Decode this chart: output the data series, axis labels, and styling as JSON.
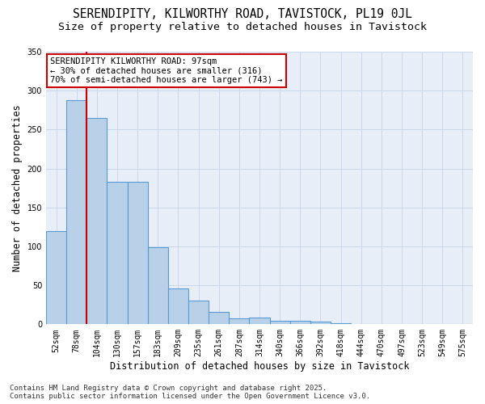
{
  "title": "SERENDIPITY, KILWORTHY ROAD, TAVISTOCK, PL19 0JL",
  "subtitle": "Size of property relative to detached houses in Tavistock",
  "xlabel": "Distribution of detached houses by size in Tavistock",
  "ylabel": "Number of detached properties",
  "categories": [
    "52sqm",
    "78sqm",
    "104sqm",
    "130sqm",
    "157sqm",
    "183sqm",
    "209sqm",
    "235sqm",
    "261sqm",
    "287sqm",
    "314sqm",
    "340sqm",
    "366sqm",
    "392sqm",
    "418sqm",
    "444sqm",
    "470sqm",
    "497sqm",
    "523sqm",
    "549sqm",
    "575sqm"
  ],
  "bar_heights": [
    120,
    288,
    265,
    183,
    183,
    99,
    46,
    30,
    16,
    8,
    9,
    5,
    4,
    3,
    1,
    0,
    0,
    0,
    0,
    0,
    0
  ],
  "bar_color": "#b8d0e8",
  "bar_edge_color": "#5b9bd5",
  "vline_pos": 1.5,
  "vline_color": "#cc0000",
  "annotation_text": "SERENDIPITY KILWORTHY ROAD: 97sqm\n← 30% of detached houses are smaller (316)\n70% of semi-detached houses are larger (743) →",
  "annotation_box_color": "#cc0000",
  "ylim": [
    0,
    350
  ],
  "yticks": [
    0,
    50,
    100,
    150,
    200,
    250,
    300,
    350
  ],
  "grid_color": "#ccd8ea",
  "background_color": "#e8eef8",
  "footer": "Contains HM Land Registry data © Crown copyright and database right 2025.\nContains public sector information licensed under the Open Government Licence v3.0.",
  "title_fontsize": 10.5,
  "subtitle_fontsize": 9.5,
  "xlabel_fontsize": 8.5,
  "ylabel_fontsize": 8.5,
  "tick_fontsize": 7,
  "annotation_fontsize": 7.5,
  "footer_fontsize": 6.5
}
